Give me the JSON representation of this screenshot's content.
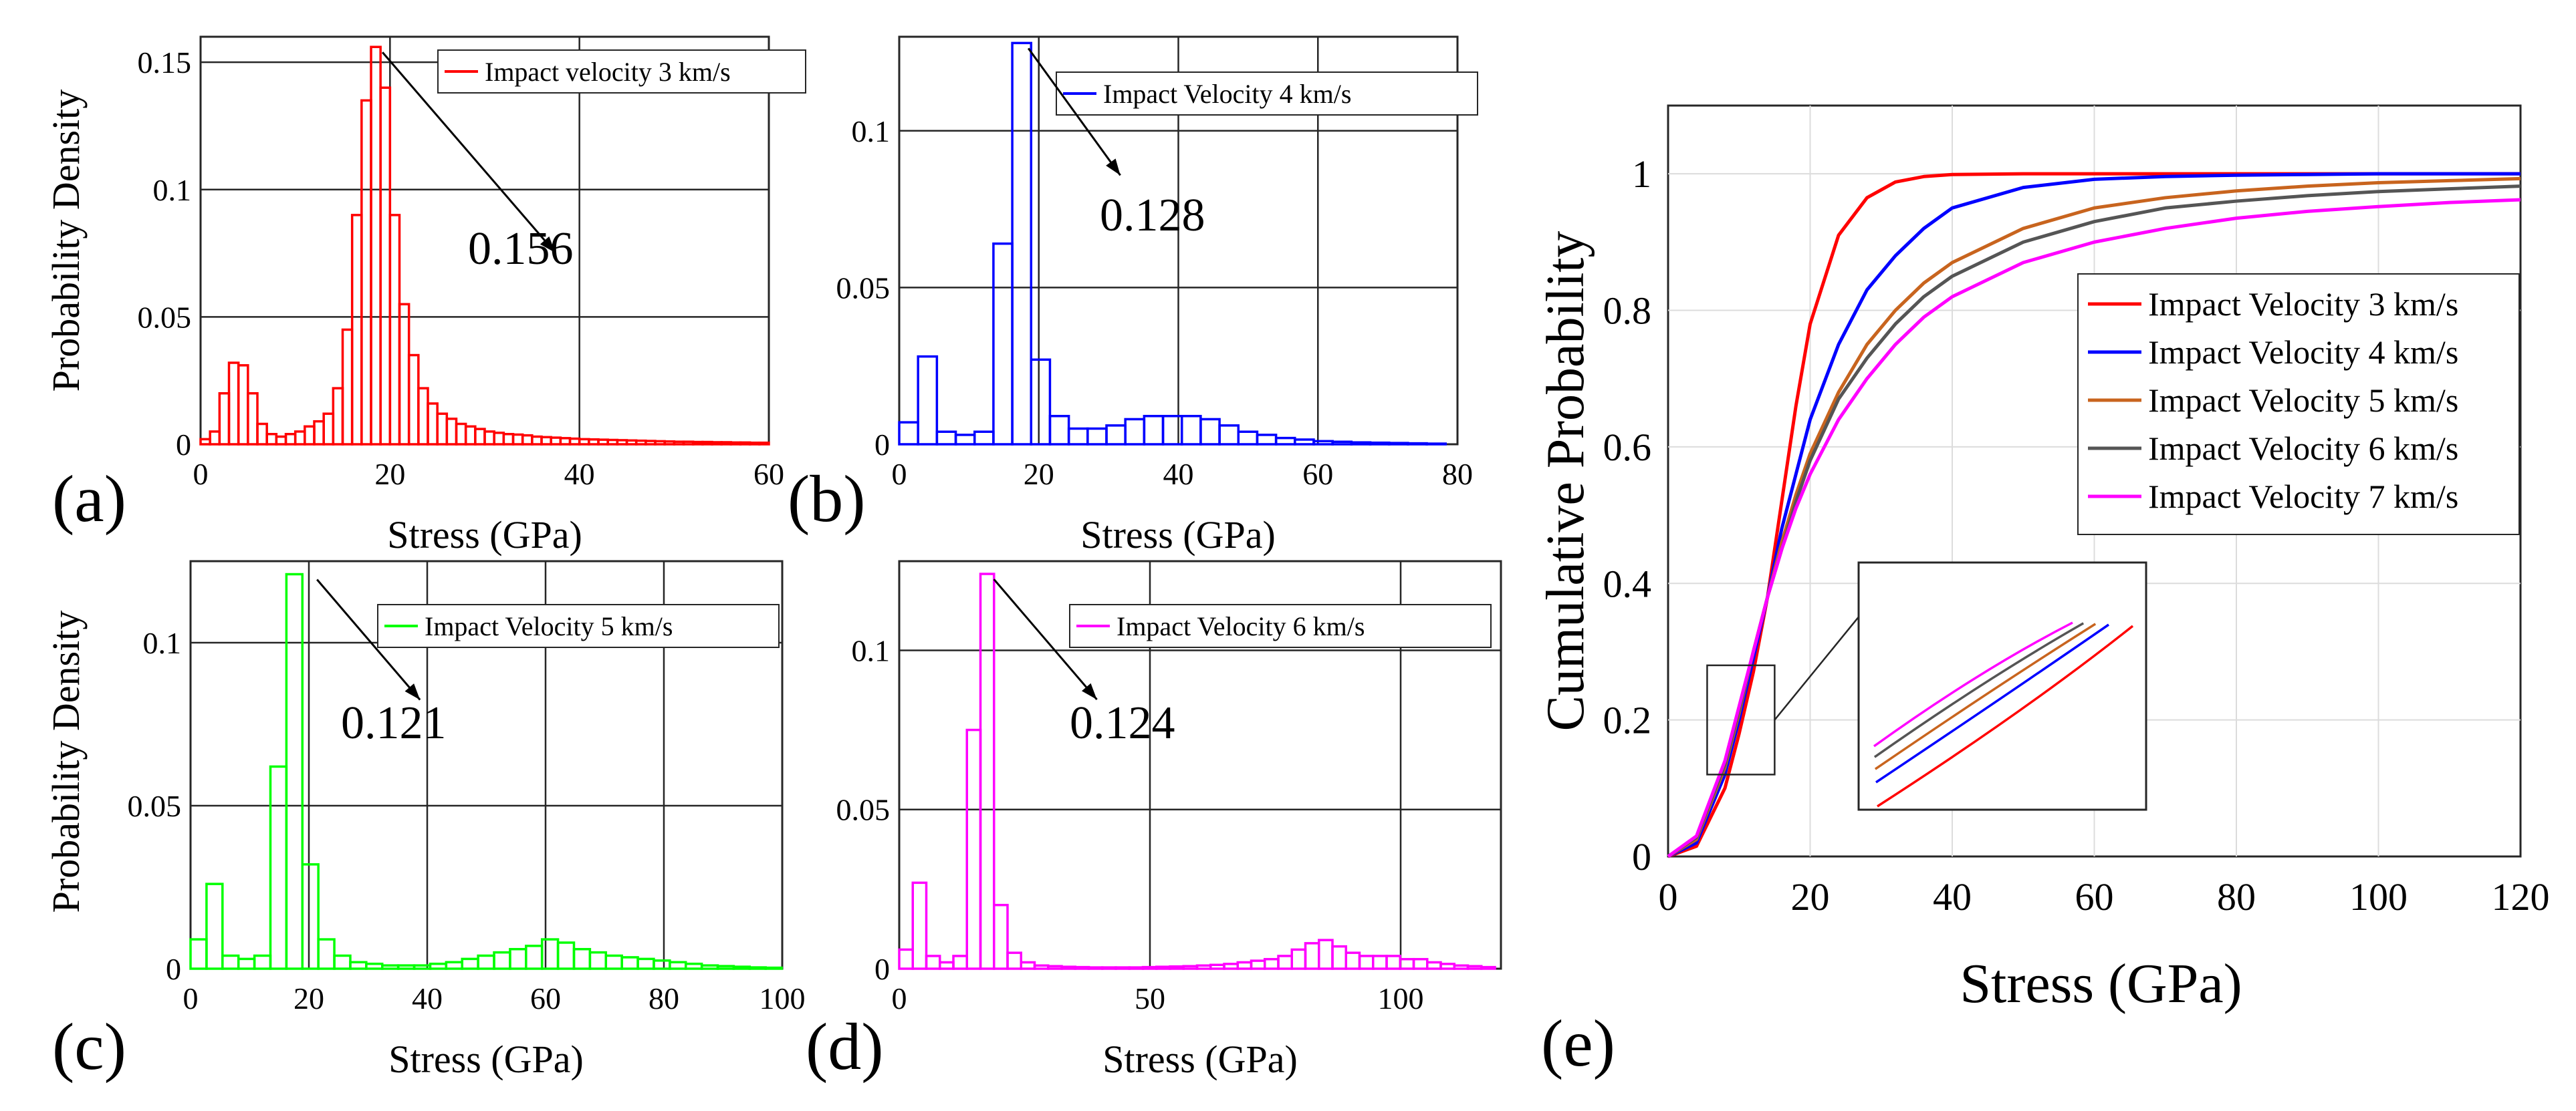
{
  "chart_data": [
    {
      "type": "bar",
      "panel": "(a)",
      "color": "#ff0000",
      "legend": "Impact velocity 3 km/s",
      "xlabel": "Stress (GPa)",
      "ylabel": "Probability Density",
      "xlim": [
        0,
        60
      ],
      "ylim": [
        0,
        0.16
      ],
      "xticks": [
        0,
        20,
        40,
        60
      ],
      "yticks": [
        0,
        0.05,
        0.1,
        0.15
      ],
      "ytick_labels": [
        "0",
        "0.05",
        "0.1",
        "0.15"
      ],
      "bin_width": 1,
      "x": [
        0.5,
        1.5,
        2.5,
        3.5,
        4.5,
        5.5,
        6.5,
        7.5,
        8.5,
        9.5,
        10.5,
        11.5,
        12.5,
        13.5,
        14.5,
        15.5,
        16.5,
        17.5,
        18.5,
        19.5,
        20.5,
        21.5,
        22.5,
        23.5,
        24.5,
        25.5,
        26.5,
        27.5,
        28.5,
        29.5,
        30.5,
        31.5,
        32.5,
        33.5,
        34.5,
        35.5,
        36.5,
        37.5,
        38.5,
        39.5,
        40.5,
        41.5,
        42.5,
        43.5,
        44.5,
        45.5,
        46.5,
        47.5,
        48.5,
        49.5,
        50.5,
        51.5,
        52.5,
        53.5,
        54.5,
        55.5,
        56.5,
        57.5,
        58.5,
        59.5
      ],
      "values": [
        0.002,
        0.005,
        0.02,
        0.032,
        0.031,
        0.02,
        0.008,
        0.004,
        0.003,
        0.004,
        0.005,
        0.007,
        0.009,
        0.012,
        0.022,
        0.045,
        0.09,
        0.135,
        0.156,
        0.14,
        0.09,
        0.055,
        0.035,
        0.022,
        0.016,
        0.012,
        0.01,
        0.008,
        0.007,
        0.006,
        0.005,
        0.0045,
        0.004,
        0.0038,
        0.0035,
        0.003,
        0.0028,
        0.0026,
        0.0024,
        0.0022,
        0.002,
        0.0019,
        0.0018,
        0.0017,
        0.0016,
        0.0015,
        0.0014,
        0.0013,
        0.0012,
        0.0011,
        0.001,
        0.001,
        0.0009,
        0.0009,
        0.0008,
        0.0008,
        0.0007,
        0.0007,
        0.0006,
        0.0006
      ],
      "annotation": {
        "text": "0.156",
        "x": 18.5,
        "y": 0.156
      }
    },
    {
      "type": "bar",
      "panel": "(b)",
      "color": "#0000ff",
      "legend": "Impact Velocity 4 km/s",
      "xlabel": "Stress (GPa)",
      "ylabel": "",
      "xlim": [
        0,
        80
      ],
      "ylim": [
        0,
        0.13
      ],
      "xticks": [
        0,
        20,
        40,
        60,
        80
      ],
      "yticks": [
        0,
        0.05,
        0.1
      ],
      "ytick_labels": [
        "0",
        "0.05",
        "0.1"
      ],
      "bin_width": 2.7,
      "x": [
        1.35,
        4.05,
        6.75,
        9.45,
        12.15,
        14.85,
        17.55,
        20.25,
        22.95,
        25.65,
        28.35,
        31.05,
        33.75,
        36.45,
        39.15,
        41.85,
        44.55,
        47.25,
        49.95,
        52.65,
        55.35,
        58.05,
        60.75,
        63.45,
        66.15,
        68.85,
        71.55,
        74.25,
        76.95
      ],
      "values": [
        0.007,
        0.028,
        0.004,
        0.003,
        0.004,
        0.064,
        0.128,
        0.027,
        0.009,
        0.005,
        0.005,
        0.006,
        0.008,
        0.009,
        0.009,
        0.009,
        0.008,
        0.006,
        0.004,
        0.003,
        0.002,
        0.0015,
        0.001,
        0.0008,
        0.0006,
        0.0005,
        0.0004,
        0.0003,
        0.0002
      ],
      "annotation": {
        "text": "0.128",
        "x": 17.55,
        "y": 0.128
      }
    },
    {
      "type": "bar",
      "panel": "(c)",
      "color": "#00ff00",
      "legend": "Impact Velocity 5 km/s",
      "xlabel": "Stress (GPa)",
      "ylabel": "Probability Density",
      "xlim": [
        0,
        100
      ],
      "ylim": [
        0,
        0.125
      ],
      "xticks": [
        0,
        20,
        40,
        60,
        80,
        100
      ],
      "yticks": [
        0,
        0.05,
        0.1
      ],
      "ytick_labels": [
        "0",
        "0.05",
        "0.1"
      ],
      "bin_width": 2.7,
      "x": [
        1.35,
        4.05,
        6.75,
        9.45,
        12.15,
        14.85,
        17.55,
        20.25,
        22.95,
        25.65,
        28.35,
        31.05,
        33.75,
        36.45,
        39.15,
        41.85,
        44.55,
        47.25,
        49.95,
        52.65,
        55.35,
        58.05,
        60.75,
        63.45,
        66.15,
        68.85,
        71.55,
        74.25,
        76.95,
        79.65,
        82.35,
        85.05,
        87.75,
        90.45,
        93.15,
        95.85,
        98.55
      ],
      "values": [
        0.009,
        0.026,
        0.004,
        0.003,
        0.004,
        0.062,
        0.121,
        0.032,
        0.009,
        0.004,
        0.002,
        0.0015,
        0.001,
        0.001,
        0.001,
        0.0015,
        0.002,
        0.003,
        0.004,
        0.005,
        0.006,
        0.007,
        0.009,
        0.008,
        0.006,
        0.005,
        0.004,
        0.0035,
        0.003,
        0.0025,
        0.002,
        0.0015,
        0.001,
        0.0008,
        0.0006,
        0.0004,
        0.0003
      ],
      "annotation": {
        "text": "0.121",
        "x": 20.25,
        "y": 0.121
      }
    },
    {
      "type": "bar",
      "panel": "(d)",
      "color": "#ff00ff",
      "legend": "Impact Velocity 6 km/s",
      "xlabel": "Stress (GPa)",
      "ylabel": "",
      "xlim": [
        0,
        120
      ],
      "ylim": [
        0,
        0.128
      ],
      "xticks": [
        0,
        50,
        100
      ],
      "yticks": [
        0,
        0.05,
        0.1
      ],
      "ytick_labels": [
        "0",
        "0.05",
        "0.1"
      ],
      "bin_width": 2.7,
      "x": [
        1.35,
        4.05,
        6.75,
        9.45,
        12.15,
        14.85,
        17.55,
        20.25,
        22.95,
        25.65,
        28.35,
        31.05,
        33.75,
        36.45,
        39.15,
        41.85,
        44.55,
        47.25,
        49.95,
        52.65,
        55.35,
        58.05,
        60.75,
        63.45,
        66.15,
        68.85,
        71.55,
        74.25,
        76.95,
        79.65,
        82.35,
        85.05,
        87.75,
        90.45,
        93.15,
        95.85,
        98.55,
        101.25,
        103.95,
        106.65,
        109.35,
        112.05,
        114.75,
        117.45
      ],
      "values": [
        0.006,
        0.027,
        0.004,
        0.002,
        0.004,
        0.075,
        0.124,
        0.02,
        0.005,
        0.002,
        0.001,
        0.0008,
        0.0006,
        0.0005,
        0.0004,
        0.0004,
        0.0004,
        0.0004,
        0.0005,
        0.0006,
        0.0007,
        0.0008,
        0.001,
        0.0012,
        0.0015,
        0.002,
        0.0025,
        0.003,
        0.004,
        0.006,
        0.008,
        0.009,
        0.007,
        0.005,
        0.004,
        0.004,
        0.004,
        0.003,
        0.003,
        0.002,
        0.0015,
        0.001,
        0.0008,
        0.0005
      ],
      "annotation": {
        "text": "0.124",
        "x": 17.55,
        "y": 0.124
      }
    },
    {
      "type": "line",
      "panel": "(e)",
      "xlabel": "Stress (GPa)",
      "ylabel": "Cumulative Probability",
      "xlim": [
        0,
        120
      ],
      "ylim": [
        0,
        1.1
      ],
      "xticks": [
        0,
        20,
        40,
        60,
        80,
        100,
        120
      ],
      "yticks": [
        0,
        0.2,
        0.4,
        0.6,
        0.8,
        1
      ],
      "ytick_labels": [
        "0",
        "0.2",
        "0.4",
        "0.6",
        "0.8",
        "1"
      ],
      "x": [
        0,
        4,
        8,
        10,
        12,
        14,
        16,
        18,
        20,
        24,
        28,
        32,
        36,
        40,
        50,
        60,
        70,
        80,
        90,
        100,
        110,
        120
      ],
      "series": [
        {
          "name": "Impact Velocity 3 km/s",
          "color": "#ff0000",
          "values": [
            0,
            0.015,
            0.1,
            0.18,
            0.27,
            0.38,
            0.52,
            0.66,
            0.78,
            0.91,
            0.965,
            0.988,
            0.996,
            0.999,
            1,
            1,
            1,
            1,
            1,
            1,
            1,
            1
          ]
        },
        {
          "name": "Impact Velocity 4 km/s",
          "color": "#0000ff",
          "values": [
            0,
            0.02,
            0.12,
            0.2,
            0.29,
            0.38,
            0.48,
            0.56,
            0.64,
            0.75,
            0.83,
            0.88,
            0.92,
            0.95,
            0.98,
            0.992,
            0.996,
            0.998,
            0.999,
            1,
            1,
            1
          ]
        },
        {
          "name": "Impact Velocity 5 km/s",
          "color": "#c8641e",
          "values": [
            0,
            0.025,
            0.13,
            0.21,
            0.3,
            0.38,
            0.46,
            0.53,
            0.59,
            0.68,
            0.75,
            0.8,
            0.84,
            0.87,
            0.92,
            0.95,
            0.965,
            0.975,
            0.982,
            0.987,
            0.99,
            0.993
          ]
        },
        {
          "name": "Impact Velocity 6 km/s",
          "color": "#555555",
          "values": [
            0,
            0.028,
            0.135,
            0.215,
            0.3,
            0.38,
            0.45,
            0.52,
            0.58,
            0.67,
            0.73,
            0.78,
            0.82,
            0.85,
            0.9,
            0.93,
            0.95,
            0.96,
            0.968,
            0.974,
            0.978,
            0.982
          ]
        },
        {
          "name": "Impact Velocity 7 km/s",
          "color": "#ff00ff",
          "values": [
            0,
            0.03,
            0.14,
            0.22,
            0.3,
            0.38,
            0.45,
            0.51,
            0.56,
            0.64,
            0.7,
            0.75,
            0.79,
            0.82,
            0.87,
            0.9,
            0.92,
            0.935,
            0.945,
            0.952,
            0.958,
            0.962
          ]
        }
      ]
    }
  ]
}
